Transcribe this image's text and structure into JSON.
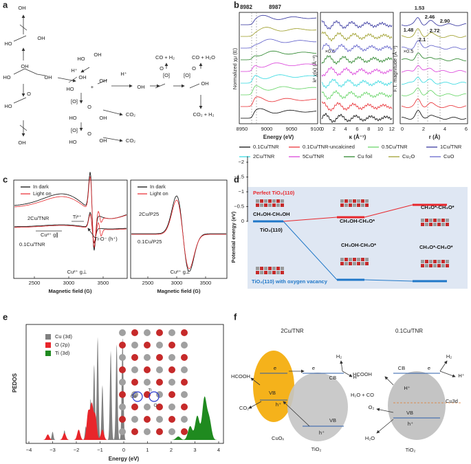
{
  "a": {
    "label": "a",
    "texts": [
      "OH",
      "HO",
      "OH",
      "HO",
      "OH",
      "OH",
      "HO",
      "O",
      "OH",
      "H⁺",
      "HO",
      "OH",
      "HO",
      "OH",
      "+",
      "OH",
      "H⁺",
      "OH",
      "[O]",
      "O",
      "CO + H₂",
      "[O]",
      "O",
      "OH",
      "CO + H₂O",
      "CO₂ + H₂",
      "[O]",
      "HO",
      "O",
      "OH",
      "CO₂",
      "[O]",
      "HO",
      "O",
      "OH",
      "CO₂"
    ]
  },
  "b": {
    "label": "b",
    "texts": [
      "8982",
      "8987",
      "8950",
      "9000",
      "9050",
      "9100",
      "Energy (eV)",
      "Normalized χμ (E)",
      "×0.5",
      "0",
      "2",
      "4",
      "6",
      "8",
      "10",
      "12",
      "κ (Å⁻¹)",
      "k² χ(κ) (Å⁻³)",
      "1.53",
      "2.46",
      "2.90",
      "1.48",
      "2.72",
      "2.1",
      "×0.5",
      "0",
      "2",
      "4",
      "6",
      "r (Å)",
      "F.T. magnitude (Å⁻³)"
    ],
    "legend": [
      {
        "name": "0.1Cu/TNR",
        "color": "#000000"
      },
      {
        "name": "0.1Cu/TNR-uncalcined",
        "color": "#e8262b"
      },
      {
        "name": "0.5Cu/TNR",
        "color": "#5fd35f"
      },
      {
        "name": "1Cu/TNR",
        "color": "#2b2b9a"
      },
      {
        "name": "2Cu/TNR",
        "color": "#2fd8e0"
      },
      {
        "name": "5Cu/TNR",
        "color": "#d93ad9"
      },
      {
        "name": "Cu foil",
        "color": "#1f7f1f"
      },
      {
        "name": "Cu₂O",
        "color": "#9a9a20"
      },
      {
        "name": "CuO",
        "color": "#5a5ac8"
      }
    ]
  },
  "c": {
    "label": "c",
    "legend_left": [
      {
        "name": "In dark",
        "color": "#000000"
      },
      {
        "name": "Light on",
        "color": "#e8262b"
      }
    ],
    "legend_right": [
      {
        "name": "In dark",
        "color": "#000000"
      },
      {
        "name": "Light on",
        "color": "#e8262b"
      }
    ],
    "texts": [
      "2Cu/TNR",
      "0.1Cu/TNR",
      "Cu²⁺ g∥",
      "Ti³⁺",
      "Ti-O⁻ (h⁺)",
      "Cu²⁺ g⊥",
      "2500",
      "3000",
      "3500",
      "Magnetic field (G)",
      "2Cu/P25",
      "0.1Cu/P25",
      "Cu²⁺ g⊥",
      "2500",
      "3000",
      "3500",
      "Magnetic field (G)"
    ]
  },
  "d": {
    "label": "d",
    "perfect_color": "#e8262b",
    "vacancy_color": "#1f77c8",
    "texts": [
      "Perfect TiO₂(110)",
      "CH₃OH-CH₃OH",
      "TiO₂(110)",
      "CH₃OH-CH₃O*",
      "CH₃O*-CH₃O*",
      "CH₃OH-CH₃O*",
      "CH₃O*-CH₃O*",
      "TiO₂(110) with oxygen vacancy",
      "0",
      "−0.5",
      "−1",
      "−1.5",
      "−2",
      "Potential energy (eV)"
    ]
  },
  "e": {
    "label": "e",
    "legend": [
      {
        "name": "Cu (3d)",
        "color": "#808080"
      },
      {
        "name": "O (2p)",
        "color": "#e8262b"
      },
      {
        "name": "Ti (3d)",
        "color": "#1f8a1f"
      }
    ],
    "texts": [
      "Cu",
      "Ti",
      "O",
      "−4",
      "−3",
      "−2",
      "−1",
      "0",
      "1",
      "2",
      "3",
      "4",
      "Energy (eV)",
      "PEDOS"
    ]
  },
  "f": {
    "label": "f",
    "texts": [
      "2Cu/TNR",
      "0.1Cu/TNR",
      "e",
      "VB",
      "h⁺",
      "e",
      "CB",
      "VB",
      "h⁺",
      "H₂",
      "H⁺",
      "HCOOH",
      "CO₂",
      "CuOₓ",
      "TiO₂",
      "H₂",
      "H⁺",
      "HCOOH",
      "CB",
      "e",
      "H⁺",
      "H₂O + CO",
      "O₂",
      "VB",
      "h⁺",
      "Cu3d",
      "H₂O",
      "TiO₂"
    ]
  }
}
